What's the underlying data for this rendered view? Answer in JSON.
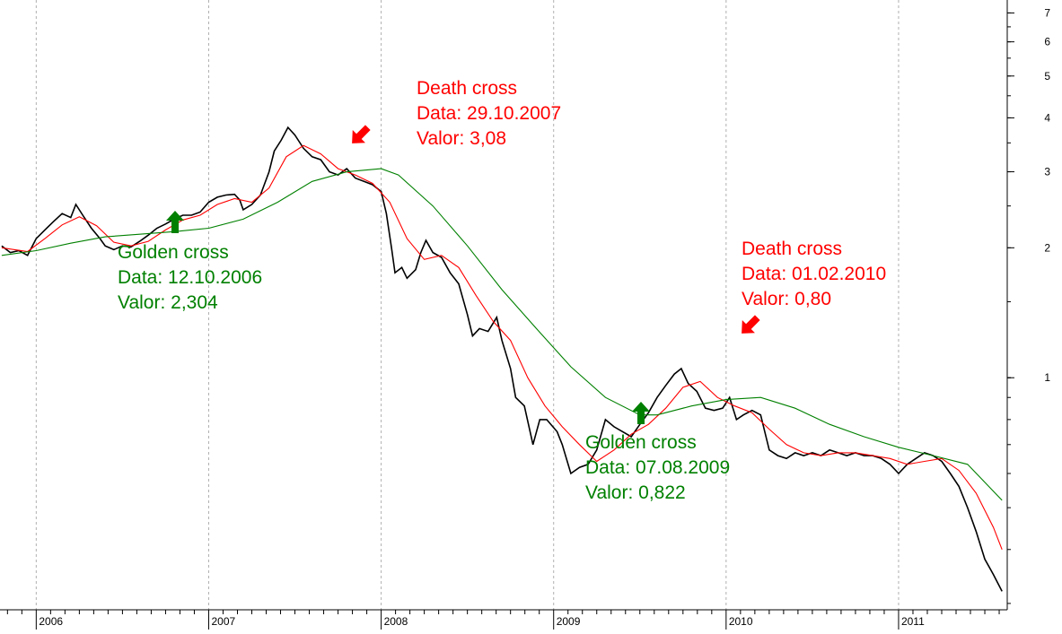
{
  "chart_data": {
    "type": "line",
    "title": "",
    "xlabel": "",
    "ylabel": "",
    "y_scale": "log",
    "ylim": [
      0.29,
      7.5
    ],
    "xlim": [
      2005.79,
      2011.63
    ],
    "grid": "vertical dashed at year boundaries",
    "x_ticks": [
      {
        "label": "2006",
        "x": 2006.0
      },
      {
        "label": "2007",
        "x": 2007.0
      },
      {
        "label": "2008",
        "x": 2008.0
      },
      {
        "label": "2009",
        "x": 2009.0
      },
      {
        "label": "2010",
        "x": 2010.0
      },
      {
        "label": "2011",
        "x": 2011.0
      }
    ],
    "y_ticks": [
      {
        "label": "7",
        "y": 7
      },
      {
        "label": "6",
        "y": 6
      },
      {
        "label": "5",
        "y": 5
      },
      {
        "label": "4",
        "y": 4
      },
      {
        "label": "3",
        "y": 3
      },
      {
        "label": "2",
        "y": 2
      },
      {
        "label": "1",
        "y": 1
      }
    ],
    "series": [
      {
        "color": "#000000",
        "points": [
          [
            2005.8,
            2.02
          ],
          [
            2005.85,
            1.95
          ],
          [
            2005.9,
            1.97
          ],
          [
            2005.95,
            1.92
          ],
          [
            2006.0,
            2.1
          ],
          [
            2006.05,
            2.2
          ],
          [
            2006.1,
            2.3
          ],
          [
            2006.15,
            2.4
          ],
          [
            2006.2,
            2.35
          ],
          [
            2006.23,
            2.52
          ],
          [
            2006.27,
            2.38
          ],
          [
            2006.32,
            2.22
          ],
          [
            2006.37,
            2.1
          ],
          [
            2006.4,
            2.02
          ],
          [
            2006.45,
            1.98
          ],
          [
            2006.5,
            2.02
          ],
          [
            2006.55,
            2.01
          ],
          [
            2006.6,
            2.07
          ],
          [
            2006.65,
            2.14
          ],
          [
            2006.7,
            2.22
          ],
          [
            2006.75,
            2.27
          ],
          [
            2006.8,
            2.33
          ],
          [
            2006.85,
            2.38
          ],
          [
            2006.9,
            2.38
          ],
          [
            2006.95,
            2.42
          ],
          [
            2007.0,
            2.55
          ],
          [
            2007.05,
            2.62
          ],
          [
            2007.1,
            2.65
          ],
          [
            2007.15,
            2.66
          ],
          [
            2007.18,
            2.58
          ],
          [
            2007.2,
            2.45
          ],
          [
            2007.25,
            2.52
          ],
          [
            2007.3,
            2.65
          ],
          [
            2007.35,
            3.0
          ],
          [
            2007.38,
            3.35
          ],
          [
            2007.42,
            3.55
          ],
          [
            2007.46,
            3.8
          ],
          [
            2007.5,
            3.65
          ],
          [
            2007.55,
            3.4
          ],
          [
            2007.6,
            3.25
          ],
          [
            2007.65,
            3.2
          ],
          [
            2007.7,
            3.0
          ],
          [
            2007.75,
            2.95
          ],
          [
            2007.8,
            3.05
          ],
          [
            2007.85,
            2.9
          ],
          [
            2007.9,
            2.85
          ],
          [
            2007.95,
            2.8
          ],
          [
            2008.0,
            2.7
          ],
          [
            2008.03,
            2.4
          ],
          [
            2008.06,
            2.0
          ],
          [
            2008.08,
            1.75
          ],
          [
            2008.12,
            1.8
          ],
          [
            2008.15,
            1.7
          ],
          [
            2008.2,
            1.78
          ],
          [
            2008.23,
            1.95
          ],
          [
            2008.26,
            2.08
          ],
          [
            2008.3,
            1.95
          ],
          [
            2008.35,
            1.9
          ],
          [
            2008.4,
            1.75
          ],
          [
            2008.45,
            1.65
          ],
          [
            2008.5,
            1.4
          ],
          [
            2008.53,
            1.25
          ],
          [
            2008.57,
            1.3
          ],
          [
            2008.62,
            1.28
          ],
          [
            2008.67,
            1.38
          ],
          [
            2008.7,
            1.22
          ],
          [
            2008.75,
            1.05
          ],
          [
            2008.78,
            0.9
          ],
          [
            2008.83,
            0.86
          ],
          [
            2008.88,
            0.7
          ],
          [
            2008.92,
            0.8
          ],
          [
            2008.96,
            0.8
          ],
          [
            2009.02,
            0.75
          ],
          [
            2009.05,
            0.7
          ],
          [
            2009.1,
            0.6
          ],
          [
            2009.15,
            0.62
          ],
          [
            2009.2,
            0.63
          ],
          [
            2009.25,
            0.68
          ],
          [
            2009.3,
            0.8
          ],
          [
            2009.35,
            0.77
          ],
          [
            2009.4,
            0.75
          ],
          [
            2009.45,
            0.73
          ],
          [
            2009.5,
            0.78
          ],
          [
            2009.55,
            0.83
          ],
          [
            2009.6,
            0.9
          ],
          [
            2009.65,
            0.96
          ],
          [
            2009.7,
            1.02
          ],
          [
            2009.74,
            1.05
          ],
          [
            2009.78,
            0.97
          ],
          [
            2009.83,
            0.93
          ],
          [
            2009.88,
            0.85
          ],
          [
            2009.93,
            0.84
          ],
          [
            2009.98,
            0.85
          ],
          [
            2010.02,
            0.9
          ],
          [
            2010.06,
            0.8
          ],
          [
            2010.1,
            0.82
          ],
          [
            2010.15,
            0.84
          ],
          [
            2010.2,
            0.82
          ],
          [
            2010.25,
            0.68
          ],
          [
            2010.3,
            0.66
          ],
          [
            2010.35,
            0.65
          ],
          [
            2010.4,
            0.67
          ],
          [
            2010.45,
            0.66
          ],
          [
            2010.5,
            0.67
          ],
          [
            2010.55,
            0.66
          ],
          [
            2010.6,
            0.68
          ],
          [
            2010.65,
            0.67
          ],
          [
            2010.7,
            0.66
          ],
          [
            2010.75,
            0.67
          ],
          [
            2010.8,
            0.66
          ],
          [
            2010.85,
            0.66
          ],
          [
            2010.9,
            0.65
          ],
          [
            2010.95,
            0.63
          ],
          [
            2011.0,
            0.6
          ],
          [
            2011.05,
            0.63
          ],
          [
            2011.1,
            0.65
          ],
          [
            2011.15,
            0.67
          ],
          [
            2011.2,
            0.66
          ],
          [
            2011.25,
            0.64
          ],
          [
            2011.3,
            0.6
          ],
          [
            2011.35,
            0.56
          ],
          [
            2011.4,
            0.5
          ],
          [
            2011.45,
            0.44
          ],
          [
            2011.5,
            0.38
          ],
          [
            2011.55,
            0.35
          ],
          [
            2011.6,
            0.32
          ]
        ]
      },
      {
        "color": "#ff0000",
        "points": [
          [
            2005.8,
            2.0
          ],
          [
            2005.95,
            1.96
          ],
          [
            2006.05,
            2.1
          ],
          [
            2006.15,
            2.26
          ],
          [
            2006.25,
            2.36
          ],
          [
            2006.35,
            2.25
          ],
          [
            2006.45,
            2.06
          ],
          [
            2006.55,
            2.02
          ],
          [
            2006.65,
            2.07
          ],
          [
            2006.75,
            2.2
          ],
          [
            2006.85,
            2.32
          ],
          [
            2006.95,
            2.38
          ],
          [
            2007.05,
            2.52
          ],
          [
            2007.15,
            2.6
          ],
          [
            2007.25,
            2.55
          ],
          [
            2007.35,
            2.75
          ],
          [
            2007.45,
            3.25
          ],
          [
            2007.55,
            3.45
          ],
          [
            2007.65,
            3.3
          ],
          [
            2007.75,
            3.05
          ],
          [
            2007.85,
            2.95
          ],
          [
            2007.95,
            2.82
          ],
          [
            2008.05,
            2.55
          ],
          [
            2008.15,
            2.1
          ],
          [
            2008.25,
            1.88
          ],
          [
            2008.35,
            1.92
          ],
          [
            2008.45,
            1.8
          ],
          [
            2008.55,
            1.55
          ],
          [
            2008.65,
            1.35
          ],
          [
            2008.75,
            1.22
          ],
          [
            2008.85,
            1.0
          ],
          [
            2008.95,
            0.86
          ],
          [
            2009.05,
            0.77
          ],
          [
            2009.15,
            0.7
          ],
          [
            2009.25,
            0.64
          ],
          [
            2009.35,
            0.68
          ],
          [
            2009.45,
            0.74
          ],
          [
            2009.55,
            0.78
          ],
          [
            2009.65,
            0.85
          ],
          [
            2009.75,
            0.95
          ],
          [
            2009.85,
            0.98
          ],
          [
            2009.95,
            0.9
          ],
          [
            2010.05,
            0.86
          ],
          [
            2010.15,
            0.83
          ],
          [
            2010.25,
            0.76
          ],
          [
            2010.35,
            0.7
          ],
          [
            2010.45,
            0.67
          ],
          [
            2010.55,
            0.66
          ],
          [
            2010.65,
            0.67
          ],
          [
            2010.75,
            0.67
          ],
          [
            2010.85,
            0.66
          ],
          [
            2010.95,
            0.65
          ],
          [
            2011.05,
            0.63
          ],
          [
            2011.15,
            0.64
          ],
          [
            2011.25,
            0.65
          ],
          [
            2011.35,
            0.61
          ],
          [
            2011.45,
            0.54
          ],
          [
            2011.55,
            0.45
          ],
          [
            2011.6,
            0.4
          ]
        ]
      },
      {
        "color": "#008000",
        "points": [
          [
            2005.8,
            1.92
          ],
          [
            2006.0,
            1.97
          ],
          [
            2006.2,
            2.05
          ],
          [
            2006.4,
            2.12
          ],
          [
            2006.6,
            2.15
          ],
          [
            2006.8,
            2.18
          ],
          [
            2007.0,
            2.22
          ],
          [
            2007.2,
            2.33
          ],
          [
            2007.4,
            2.55
          ],
          [
            2007.6,
            2.85
          ],
          [
            2007.8,
            3.0
          ],
          [
            2008.0,
            3.05
          ],
          [
            2008.1,
            2.95
          ],
          [
            2008.3,
            2.5
          ],
          [
            2008.5,
            2.02
          ],
          [
            2008.7,
            1.6
          ],
          [
            2008.9,
            1.3
          ],
          [
            2009.1,
            1.06
          ],
          [
            2009.3,
            0.9
          ],
          [
            2009.5,
            0.82
          ],
          [
            2009.6,
            0.82
          ],
          [
            2009.8,
            0.86
          ],
          [
            2010.0,
            0.89
          ],
          [
            2010.2,
            0.9
          ],
          [
            2010.4,
            0.85
          ],
          [
            2010.6,
            0.78
          ],
          [
            2010.8,
            0.73
          ],
          [
            2011.0,
            0.69
          ],
          [
            2011.2,
            0.66
          ],
          [
            2011.4,
            0.63
          ],
          [
            2011.6,
            0.52
          ]
        ]
      }
    ],
    "annotations": [
      {
        "name": "golden-cross-1",
        "color": "#008000",
        "arrow": "up",
        "lines": [
          "Golden cross",
          "Data: 12.10.2006",
          "Valor: 2,304"
        ]
      },
      {
        "name": "death-cross-1",
        "color": "#ff0000",
        "arrow": "down-left",
        "lines": [
          "Death cross",
          "Data: 29.10.2007",
          "Valor: 3,08"
        ]
      },
      {
        "name": "golden-cross-2",
        "color": "#008000",
        "arrow": "up",
        "lines": [
          "Golden cross",
          "Data: 07.08.2009",
          "Valor: 0,822"
        ]
      },
      {
        "name": "death-cross-2",
        "color": "#ff0000",
        "arrow": "down-left",
        "lines": [
          "Death cross",
          "Data: 01.02.2010",
          "Valor: 0,80"
        ]
      }
    ]
  }
}
